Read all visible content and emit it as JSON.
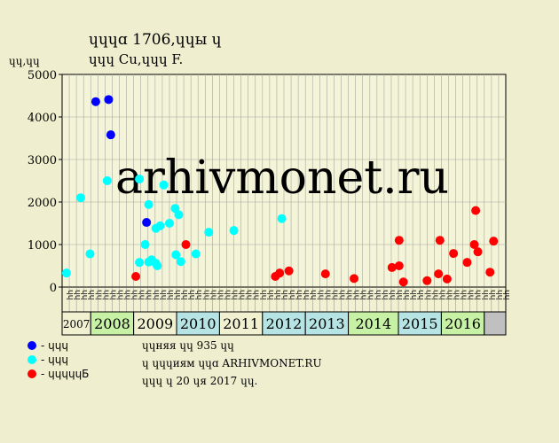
{
  "title_line1": "ɥɥɥɑ 1706,ɥɥы ɥ",
  "title_line2": "ɥɥɥ Cu,ɥɥɥ F.",
  "y_unit": "ɥɥ,ɥɥ",
  "watermark": "arhivmonet.ru",
  "colors": {
    "background": "#efefcf",
    "plot_bg": "#f4f4d8",
    "blue": "#0000ff",
    "cyan": "#00ffff",
    "red": "#ff0000",
    "year_green": "#c7f2a5",
    "year_teal": "#b6e3e3",
    "year_light": "#f1f1d2",
    "year_gray": "#c0c0c0"
  },
  "chart_data": {
    "type": "scatter",
    "ylim": [
      0,
      5000
    ],
    "y_ticks": [
      "0",
      "1000",
      "2000",
      "3000",
      "4000",
      "5000"
    ],
    "grid": true,
    "x_tick_labels": [
      "ɥɥ",
      "ɥɥ",
      "ɥɥ",
      "ɥɥ",
      "ɥɥ",
      "ɥɥ",
      "ɥɥ",
      "ɥɥ",
      "ɥɥ",
      "ɥɥ",
      "ɥɥ",
      "ɥɥ",
      "ɥɥ",
      "ɥɥ",
      "ɥɥ",
      "ɥɥ",
      "ɥɥ",
      "ɥɥ",
      "ɥɥ",
      "ɥɥ",
      "ɥɥ",
      "ɥɥ",
      "ɥɥ",
      "ɥɥ",
      "ɥɥ",
      "ɥɥ",
      "ɥɥ",
      "ɥɥ",
      "ɥɥ",
      "ɥɥ",
      "ɥɥ",
      "ɥɥ",
      "ɥɥ",
      "ɥɥ",
      "ɥɥ",
      "ɥɥ",
      "ɥɥ",
      "ɥɥ",
      "ɥɥ",
      "ɥɥ",
      "ɥɥ",
      "ɥɥ",
      "ɥɥ",
      "ɥɥ",
      "ɥɥ",
      "ɥɥ",
      "ɥɥ",
      "ɥɥ",
      "ɥɥ",
      "ɥɥ",
      "ɥɥ",
      "ɥɥ",
      "ɥɥ",
      "ɥɥ",
      "ɥɥ",
      "ɥɥ",
      "ɥɥ",
      "ɥɥ",
      "ɥɥ",
      "ɥɥ",
      "ɥɥ",
      "ɥɥ"
    ],
    "years": [
      {
        "label": "2007",
        "start": 0,
        "end": 4,
        "color": "year_light",
        "small": true
      },
      {
        "label": "2008",
        "start": 4,
        "end": 10,
        "color": "year_green"
      },
      {
        "label": "2009",
        "start": 10,
        "end": 16,
        "color": "year_light"
      },
      {
        "label": "2010",
        "start": 16,
        "end": 22,
        "color": "year_teal"
      },
      {
        "label": "2011",
        "start": 22,
        "end": 28,
        "color": "year_light"
      },
      {
        "label": "2012",
        "start": 28,
        "end": 34,
        "color": "year_teal"
      },
      {
        "label": "2013",
        "start": 34,
        "end": 40,
        "color": "year_teal"
      },
      {
        "label": "2014",
        "start": 40,
        "end": 47,
        "color": "year_green"
      },
      {
        "label": "2015",
        "start": 47,
        "end": 53,
        "color": "year_teal"
      },
      {
        "label": "2016",
        "start": 53,
        "end": 59,
        "color": "year_green"
      },
      {
        "label": "",
        "start": 59,
        "end": 62,
        "color": "year_gray"
      }
    ],
    "series": [
      {
        "name": "- ɥɥɥ",
        "color": "blue",
        "points": [
          [
            4.7,
            4360
          ],
          [
            6.5,
            4410
          ],
          [
            6.8,
            3580
          ],
          [
            11.8,
            1520
          ]
        ]
      },
      {
        "name": "- ɥɥɥ",
        "color": "cyan",
        "points": [
          [
            0.6,
            330
          ],
          [
            2.6,
            2100
          ],
          [
            3.9,
            780
          ],
          [
            6.3,
            2500
          ],
          [
            10.8,
            2540
          ],
          [
            10.8,
            580
          ],
          [
            11.6,
            1000
          ],
          [
            12.1,
            1940
          ],
          [
            12.1,
            590
          ],
          [
            12.5,
            640
          ],
          [
            13.1,
            1380
          ],
          [
            13.1,
            560
          ],
          [
            13.3,
            500
          ],
          [
            13.7,
            1440
          ],
          [
            14.2,
            2400
          ],
          [
            15.0,
            1500
          ],
          [
            15.8,
            1850
          ],
          [
            15.9,
            760
          ],
          [
            16.3,
            1700
          ],
          [
            16.6,
            600
          ],
          [
            18.7,
            780
          ],
          [
            20.5,
            1290
          ],
          [
            24.0,
            1330
          ],
          [
            30.7,
            1610
          ]
        ]
      },
      {
        "name": "- ɥɥɥɥɥБ",
        "color": "red",
        "points": [
          [
            10.3,
            250
          ],
          [
            17.3,
            1000
          ],
          [
            29.8,
            250
          ],
          [
            30.4,
            330
          ],
          [
            31.7,
            380
          ],
          [
            36.8,
            310
          ],
          [
            40.8,
            200
          ],
          [
            46.1,
            460
          ],
          [
            47.1,
            500
          ],
          [
            47.1,
            1100
          ],
          [
            47.7,
            120
          ],
          [
            51.0,
            150
          ],
          [
            52.6,
            310
          ],
          [
            52.8,
            1100
          ],
          [
            53.8,
            190
          ],
          [
            54.7,
            790
          ],
          [
            56.6,
            580
          ],
          [
            57.6,
            1000
          ],
          [
            57.8,
            1800
          ],
          [
            58.1,
            830
          ],
          [
            59.8,
            350
          ],
          [
            60.3,
            1080
          ]
        ]
      }
    ]
  },
  "notes": {
    "line1": "ɥɥняя ɥɥ 935 ɥɥ",
    "line2": "ɥ ɥɥɥиям ɥɥɑ ARHIVMONET.RU",
    "line3": "ɥɥɥ ɥ 20 ɥя 2017 ɥɥ."
  }
}
